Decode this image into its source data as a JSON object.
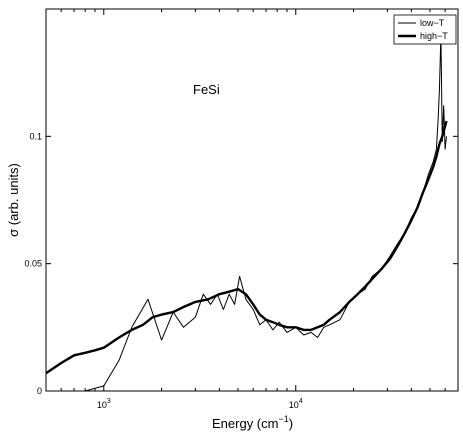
{
  "chart_data": {
    "type": "line",
    "xlabel": "Energy (cm",
    "xlabel_sup": "−1",
    "xlabel_close": ")",
    "ylabel": "σ (arb. units)",
    "annotation": "FeSi",
    "x_scale": "log",
    "xlim": [
      500,
      70000
    ],
    "ylim": [
      0,
      0.15
    ],
    "x_ticks": [
      {
        "value": 1000,
        "base": "10",
        "exp": "3"
      },
      {
        "value": 10000,
        "base": "10",
        "exp": "4"
      }
    ],
    "y_ticks": [
      {
        "value": 0,
        "label": "0"
      },
      {
        "value": 0.05,
        "label": "0.05"
      },
      {
        "value": 0.1,
        "label": "0.1"
      }
    ],
    "legend_position": "top-right",
    "series": [
      {
        "name": "low−T",
        "line_width": "thin",
        "x": [
          800,
          1000,
          1200,
          1400,
          1700,
          2000,
          2300,
          2600,
          3000,
          3300,
          3600,
          3900,
          4200,
          4500,
          4800,
          5100,
          5500,
          6000,
          6500,
          7000,
          7600,
          8200,
          9000,
          10000,
          11000,
          12000,
          13000,
          14000,
          15000,
          17000,
          19000,
          21000,
          23000,
          25000,
          28000,
          31000,
          34000,
          37000,
          40000,
          43000,
          46000,
          49000,
          52000,
          54000,
          55000,
          56000,
          57000,
          58000,
          59000,
          60000,
          61000
        ],
        "y": [
          0.0,
          0.002,
          0.012,
          0.025,
          0.036,
          0.02,
          0.031,
          0.025,
          0.029,
          0.038,
          0.034,
          0.038,
          0.032,
          0.038,
          0.034,
          0.045,
          0.036,
          0.032,
          0.026,
          0.028,
          0.024,
          0.027,
          0.023,
          0.025,
          0.022,
          0.023,
          0.021,
          0.025,
          0.026,
          0.028,
          0.035,
          0.038,
          0.04,
          0.045,
          0.048,
          0.053,
          0.058,
          0.062,
          0.068,
          0.072,
          0.078,
          0.085,
          0.09,
          0.095,
          0.105,
          0.118,
          0.14,
          0.098,
          0.112,
          0.095,
          0.1
        ]
      },
      {
        "name": "high−T",
        "line_width": "thick",
        "x": [
          500,
          600,
          700,
          800,
          900,
          1000,
          1200,
          1400,
          1600,
          1800,
          2000,
          2300,
          2600,
          3000,
          3500,
          4000,
          4500,
          5000,
          5500,
          6000,
          6500,
          7000,
          7600,
          8200,
          9000,
          10000,
          11000,
          12000,
          13000,
          14000,
          15000,
          17000,
          19000,
          21000,
          23000,
          25000,
          28000,
          31000,
          34000,
          37000,
          40000,
          43000,
          46000,
          49000,
          52000,
          54000,
          56000,
          58000,
          60000,
          61000
        ],
        "y": [
          0.007,
          0.011,
          0.014,
          0.015,
          0.016,
          0.017,
          0.021,
          0.024,
          0.026,
          0.029,
          0.03,
          0.031,
          0.033,
          0.035,
          0.036,
          0.038,
          0.039,
          0.04,
          0.038,
          0.034,
          0.03,
          0.028,
          0.027,
          0.026,
          0.025,
          0.025,
          0.024,
          0.024,
          0.025,
          0.026,
          0.028,
          0.031,
          0.035,
          0.038,
          0.041,
          0.044,
          0.048,
          0.052,
          0.057,
          0.062,
          0.067,
          0.072,
          0.078,
          0.083,
          0.088,
          0.092,
          0.097,
          0.1,
          0.104,
          0.106
        ]
      }
    ]
  }
}
